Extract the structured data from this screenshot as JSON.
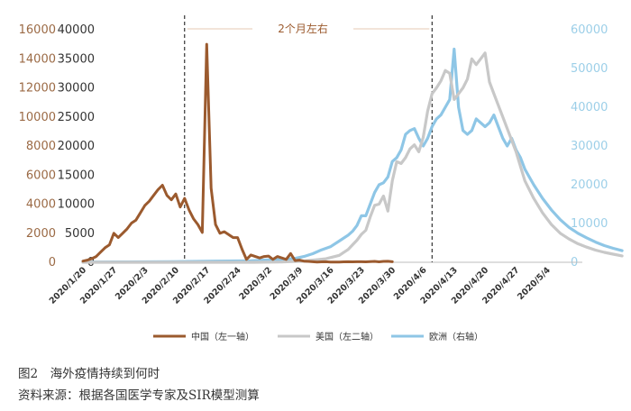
{
  "chart_data": {
    "type": "line",
    "annotation": {
      "label": "2个月左右",
      "marker_dates": [
        "2020/2/12",
        "2020/4/8"
      ]
    },
    "axes": {
      "left1": {
        "label": "中国（左一轴）",
        "min": 0,
        "max": 16000,
        "ticks": [
          0,
          2000,
          4000,
          6000,
          8000,
          10000,
          12000,
          14000,
          16000
        ],
        "color": "#9B6A45"
      },
      "left2": {
        "min": 0,
        "max": 40000,
        "ticks": [
          0,
          5000,
          10000,
          15000,
          20000,
          25000,
          30000,
          35000,
          40000
        ],
        "color": "#333333"
      },
      "right": {
        "min": 0,
        "max": 60000,
        "ticks": [
          0,
          10000,
          20000,
          30000,
          40000,
          50000,
          60000
        ],
        "color": "#9CCFE8"
      }
    },
    "x_ticks": [
      "2020/1/20",
      "2020/1/27",
      "2020/2/3",
      "2020/2/10",
      "2020/2/17",
      "2020/2/24",
      "2020/3/2",
      "2020/3/9",
      "2020/3/16",
      "2020/3/23",
      "2020/3/30",
      "2020/4/6",
      "2020/4/13",
      "2020/4/20",
      "2020/4/27",
      "2020/5/4"
    ],
    "x_range_days": [
      0,
      113
    ],
    "series": [
      {
        "name": "中国（左一轴）",
        "axis": "left1",
        "color": "#9B5A2E",
        "points": [
          [
            0,
            80
          ],
          [
            1,
            150
          ],
          [
            2,
            250
          ],
          [
            3,
            400
          ],
          [
            4,
            700
          ],
          [
            5,
            1000
          ],
          [
            6,
            1200
          ],
          [
            7,
            2000
          ],
          [
            8,
            1700
          ],
          [
            9,
            2000
          ],
          [
            10,
            2300
          ],
          [
            11,
            2700
          ],
          [
            12,
            2900
          ],
          [
            13,
            3400
          ],
          [
            14,
            3900
          ],
          [
            15,
            4200
          ],
          [
            16,
            4600
          ],
          [
            17,
            5000
          ],
          [
            18,
            5300
          ],
          [
            19,
            4600
          ],
          [
            20,
            4300
          ],
          [
            21,
            4700
          ],
          [
            22,
            3800
          ],
          [
            23,
            4400
          ],
          [
            24,
            3600
          ],
          [
            25,
            3000
          ],
          [
            26,
            2600
          ],
          [
            27,
            2050
          ],
          [
            28,
            15000
          ],
          [
            29,
            5100
          ],
          [
            30,
            2600
          ],
          [
            31,
            2000
          ],
          [
            32,
            2100
          ],
          [
            33,
            1900
          ],
          [
            34,
            1700
          ],
          [
            35,
            1700
          ],
          [
            36,
            900
          ],
          [
            37,
            200
          ],
          [
            38,
            500
          ],
          [
            39,
            400
          ],
          [
            40,
            300
          ],
          [
            41,
            400
          ],
          [
            42,
            430
          ],
          [
            43,
            200
          ],
          [
            44,
            400
          ],
          [
            45,
            300
          ],
          [
            46,
            200
          ],
          [
            47,
            600
          ],
          [
            48,
            120
          ],
          [
            49,
            150
          ],
          [
            50,
            80
          ],
          [
            51,
            60
          ],
          [
            52,
            40
          ],
          [
            53,
            20
          ],
          [
            54,
            30
          ],
          [
            55,
            40
          ],
          [
            56,
            20
          ],
          [
            57,
            15
          ],
          [
            58,
            20
          ],
          [
            59,
            30
          ],
          [
            60,
            40
          ],
          [
            61,
            30
          ],
          [
            62,
            35
          ],
          [
            63,
            40
          ],
          [
            64,
            30
          ],
          [
            65,
            50
          ],
          [
            66,
            60
          ],
          [
            67,
            30
          ],
          [
            68,
            60
          ],
          [
            69,
            70
          ],
          [
            70,
            40
          ]
        ]
      },
      {
        "name": "美国（左二轴）",
        "axis": "left2",
        "color": "#C8C8C8",
        "points": [
          [
            0,
            0
          ],
          [
            39,
            0
          ],
          [
            45,
            50
          ],
          [
            50,
            200
          ],
          [
            55,
            600
          ],
          [
            58,
            1200
          ],
          [
            60,
            2200
          ],
          [
            61,
            3000
          ],
          [
            62,
            3800
          ],
          [
            63,
            4800
          ],
          [
            64,
            5500
          ],
          [
            65,
            7800
          ],
          [
            66,
            9800
          ],
          [
            67,
            10000
          ],
          [
            68,
            11400
          ],
          [
            69,
            8800
          ],
          [
            70,
            14000
          ],
          [
            71,
            17300
          ],
          [
            72,
            17000
          ],
          [
            73,
            18000
          ],
          [
            74,
            19500
          ],
          [
            75,
            20200
          ],
          [
            76,
            19000
          ],
          [
            77,
            21500
          ],
          [
            78,
            26000
          ],
          [
            79,
            29000
          ],
          [
            80,
            30000
          ],
          [
            81,
            31200
          ],
          [
            82,
            33000
          ],
          [
            83,
            32500
          ],
          [
            84,
            28000
          ],
          [
            85,
            29000
          ],
          [
            86,
            30000
          ],
          [
            87,
            31500
          ],
          [
            88,
            35000
          ],
          [
            89,
            34000
          ],
          [
            90,
            35000
          ],
          [
            91,
            36000
          ],
          [
            92,
            31000
          ],
          [
            93,
            29000
          ],
          [
            94,
            27000
          ],
          [
            95,
            25000
          ],
          [
            96,
            23000
          ],
          [
            97,
            21000
          ],
          [
            98,
            19000
          ],
          [
            99,
            16500
          ],
          [
            100,
            14000
          ],
          [
            102,
            11000
          ],
          [
            104,
            8500
          ],
          [
            106,
            6500
          ],
          [
            108,
            5000
          ],
          [
            110,
            4000
          ],
          [
            112,
            3200
          ],
          [
            114,
            2600
          ],
          [
            116,
            2100
          ],
          [
            118,
            1700
          ],
          [
            120,
            1400
          ],
          [
            122,
            1100
          ]
        ]
      },
      {
        "name": "欧洲（右轴）",
        "axis": "right",
        "color": "#8EC6E6",
        "points": [
          [
            0,
            80
          ],
          [
            10,
            100
          ],
          [
            20,
            150
          ],
          [
            30,
            300
          ],
          [
            38,
            400
          ],
          [
            40,
            500
          ],
          [
            42,
            600
          ],
          [
            44,
            700
          ],
          [
            46,
            800
          ],
          [
            48,
            1000
          ],
          [
            50,
            1500
          ],
          [
            52,
            2200
          ],
          [
            54,
            3200
          ],
          [
            56,
            4000
          ],
          [
            58,
            5500
          ],
          [
            60,
            7000
          ],
          [
            61,
            8000
          ],
          [
            62,
            9500
          ],
          [
            63,
            12000
          ],
          [
            64,
            12000
          ],
          [
            65,
            15000
          ],
          [
            66,
            18000
          ],
          [
            67,
            20000
          ],
          [
            68,
            20500
          ],
          [
            69,
            22000
          ],
          [
            70,
            26000
          ],
          [
            71,
            27000
          ],
          [
            72,
            29000
          ],
          [
            73,
            33000
          ],
          [
            74,
            34000
          ],
          [
            75,
            34500
          ],
          [
            76,
            32000
          ],
          [
            77,
            30000
          ],
          [
            78,
            32000
          ],
          [
            79,
            35000
          ],
          [
            80,
            37000
          ],
          [
            81,
            38000
          ],
          [
            82,
            40000
          ],
          [
            83,
            42000
          ],
          [
            84,
            55000
          ],
          [
            85,
            40000
          ],
          [
            86,
            34000
          ],
          [
            87,
            33000
          ],
          [
            88,
            34000
          ],
          [
            89,
            37000
          ],
          [
            90,
            36000
          ],
          [
            91,
            35000
          ],
          [
            92,
            36000
          ],
          [
            93,
            38000
          ],
          [
            94,
            35000
          ],
          [
            95,
            32000
          ],
          [
            96,
            30000
          ],
          [
            97,
            32000
          ],
          [
            98,
            29000
          ],
          [
            99,
            27000
          ],
          [
            100,
            24000
          ],
          [
            102,
            20000
          ],
          [
            104,
            16500
          ],
          [
            106,
            13500
          ],
          [
            108,
            11000
          ],
          [
            110,
            9000
          ],
          [
            112,
            7500
          ],
          [
            114,
            6300
          ],
          [
            116,
            5200
          ],
          [
            118,
            4300
          ],
          [
            120,
            3600
          ],
          [
            122,
            3000
          ]
        ]
      }
    ]
  },
  "caption": {
    "title": "图2　海外疫情持续到何时",
    "source": "资料来源：根据各国医学专家及SIR模型测算"
  }
}
